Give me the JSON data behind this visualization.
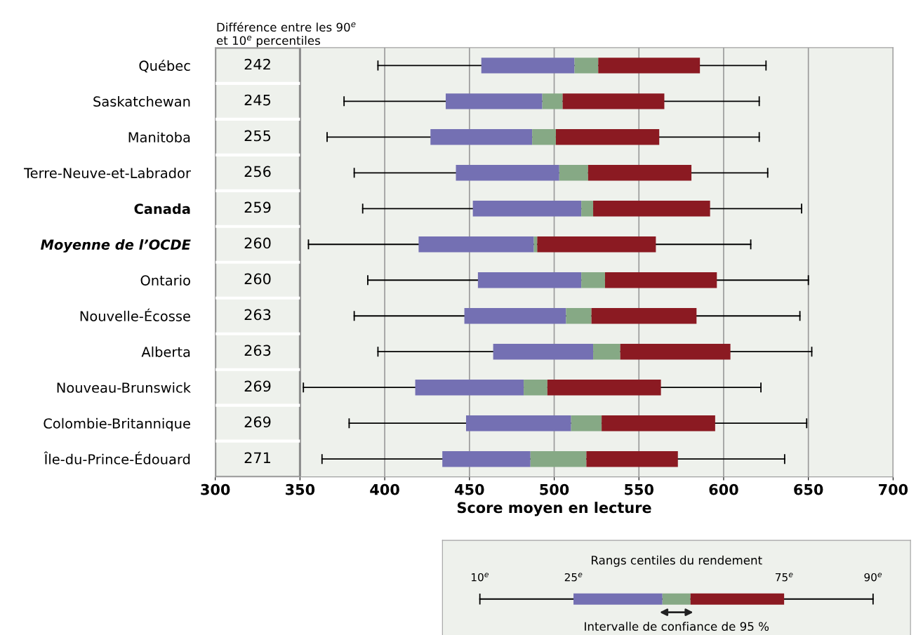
{
  "chart_data": {
    "type": "bar",
    "orientation": "horizontal",
    "xlabel": "Score moyen en lecture",
    "categories": [
      "Québec",
      "Saskatchewan",
      "Manitoba",
      "Terre-Neuve-et-Labrador",
      "Canada",
      "Moyenne de l’OCDE",
      "Ontario",
      "Nouvelle-Écosse",
      "Alberta",
      "Nouveau-Brunswick",
      "Colombie-Britannique",
      "Île-du-Prince-Édouard"
    ],
    "series": [
      {
        "color": "#7470b3",
        "base": [
          457,
          436,
          427,
          442,
          452,
          420,
          455,
          447,
          464,
          418,
          448,
          434
        ],
        "values": [
          55,
          57,
          60,
          61,
          64,
          68,
          61,
          60,
          59,
          64,
          62,
          52
        ],
        "errors": [
          [
            396,
            625
          ],
          [
            376,
            621
          ],
          [
            366,
            621
          ],
          [
            382,
            626
          ],
          [
            387,
            646
          ],
          [
            355,
            616
          ],
          [
            390,
            650
          ],
          [
            382,
            645
          ],
          [
            396,
            652
          ],
          [
            352,
            622
          ],
          [
            379,
            649
          ],
          [
            363,
            636
          ]
        ]
      },
      {
        "color": "#86a985",
        "base": [
          512,
          493,
          487,
          503,
          516,
          488,
          516,
          507,
          523,
          482,
          510,
          486
        ],
        "values": [
          14,
          12,
          14,
          17,
          7,
          2,
          14,
          15,
          16,
          14,
          18,
          33
        ]
      },
      {
        "color": "#8b1a22",
        "base": [
          526,
          505,
          501,
          520,
          523,
          490,
          530,
          522,
          539,
          496,
          528,
          519
        ],
        "values": [
          60,
          60,
          61,
          61,
          69,
          70,
          66,
          62,
          65,
          67,
          67,
          54
        ]
      }
    ],
    "xlim": [
      300,
      700
    ],
    "xticks": [
      300,
      350,
      400,
      450,
      500,
      550,
      600,
      650,
      700
    ],
    "grid": "x",
    "annotations": [
      "Différence entre les 90$^{e}$\net 10$^{e}$ percentiles",
      "Rangs centiles du rendement",
      "10$^{e}$",
      "25$^{e}$",
      "75$^{e}$",
      "90$^{e}$",
      "Intervalle de confiance de 95 %",
      "242",
      "245",
      "255",
      "256",
      "259",
      "260",
      "260",
      "263",
      "263",
      "269",
      "269",
      "271"
    ]
  }
}
